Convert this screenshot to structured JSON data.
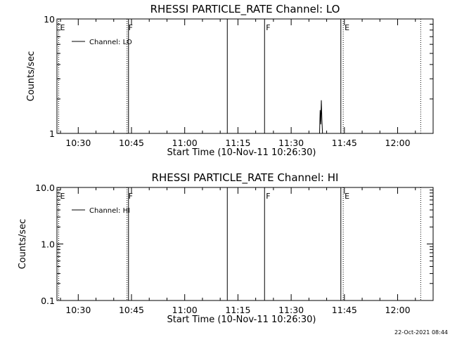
{
  "chart_data": [
    {
      "type": "line",
      "title": "RHESSI PARTICLE_RATE Channel: LO",
      "xlabel": "Start Time (10-Nov-11 10:26:30)",
      "ylabel": "Counts/sec",
      "yscale": "log",
      "ylim": [
        1,
        10
      ],
      "xlim": [
        "10:24",
        "12:10"
      ],
      "x_tick_labels": [
        "10:30",
        "10:45",
        "11:00",
        "11:15",
        "11:30",
        "11:45",
        "12:00"
      ],
      "y_tick_labels": [
        "1",
        "10"
      ],
      "legend": {
        "placement": "top-left",
        "entries": [
          "Channel: LO"
        ]
      },
      "series": [
        {
          "name": "Channel: LO",
          "x": [
            "11:38:00",
            "11:38:10",
            "11:38:20",
            "11:38:30",
            "11:38:40",
            "11:38:50",
            "11:39:00",
            "11:39:10"
          ],
          "y": [
            1,
            1.6,
            1.2,
            1.95,
            1.3,
            1,
            1,
            1
          ]
        }
      ],
      "markers": [
        {
          "time": "10:24:30",
          "label": "E",
          "style": "dotted"
        },
        {
          "time": "10:43:45",
          "label": "F",
          "style": "dotted"
        },
        {
          "time": "10:44:10",
          "label": "",
          "style": "solid"
        },
        {
          "time": "11:12:00",
          "label": "",
          "style": "solid"
        },
        {
          "time": "11:22:30",
          "label": "F",
          "style": "solid"
        },
        {
          "time": "11:44:00",
          "label": "",
          "style": "solid"
        },
        {
          "time": "11:44:40",
          "label": "E",
          "style": "dotted"
        },
        {
          "time": "12:06:30",
          "label": "",
          "style": "dotted"
        }
      ]
    },
    {
      "type": "line",
      "title": "RHESSI PARTICLE_RATE Channel: HI",
      "xlabel": "Start Time (10-Nov-11 10:26:30)",
      "ylabel": "Counts/sec",
      "yscale": "log",
      "ylim": [
        0.1,
        10
      ],
      "xlim": [
        "10:24",
        "12:10"
      ],
      "x_tick_labels": [
        "10:30",
        "10:45",
        "11:00",
        "11:15",
        "11:30",
        "11:45",
        "12:00"
      ],
      "y_tick_labels": [
        "0.1",
        "1.0",
        "10.0"
      ],
      "legend": {
        "placement": "top-left",
        "entries": [
          "Channel: HI"
        ]
      },
      "series": [
        {
          "name": "Channel: HI",
          "x": [],
          "y": []
        }
      ],
      "markers": [
        {
          "time": "10:24:30",
          "label": "E",
          "style": "dotted"
        },
        {
          "time": "10:43:45",
          "label": "F",
          "style": "dotted"
        },
        {
          "time": "10:44:10",
          "label": "",
          "style": "solid"
        },
        {
          "time": "11:12:00",
          "label": "",
          "style": "solid"
        },
        {
          "time": "11:22:30",
          "label": "F",
          "style": "solid"
        },
        {
          "time": "11:44:00",
          "label": "",
          "style": "solid"
        },
        {
          "time": "11:44:40",
          "label": "E",
          "style": "dotted"
        },
        {
          "time": "12:06:30",
          "label": "",
          "style": "dotted"
        }
      ]
    }
  ],
  "footer": {
    "timestamp": "22-Oct-2021 08:44"
  }
}
